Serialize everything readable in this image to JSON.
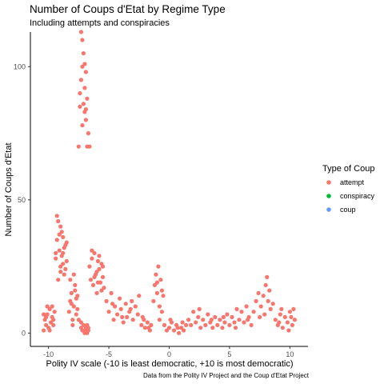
{
  "chart_data": {
    "type": "scatter",
    "title": "Number of Coups d'Etat by Regime Type",
    "subtitle": "Including attempts and conspiracies",
    "xlabel": "Polity IV scale (-10 is least democratic, +10 is most democratic)",
    "ylabel": "Number of Coups d'Etat",
    "caption": "Data from the Polity IV Project and the Coup d'Etat Project",
    "xlim": [
      -11.5,
      11.5
    ],
    "ylim": [
      -5,
      113
    ],
    "x_ticks": [
      -10,
      -5,
      0,
      5,
      10
    ],
    "y_ticks": [
      0,
      50,
      100
    ],
    "grid": false,
    "legend": {
      "title": "Type of Coup",
      "position": "right",
      "entries": [
        {
          "label": "attempt",
          "color": "#F8766D"
        },
        {
          "label": "conspiracy",
          "color": "#00BA38"
        },
        {
          "label": "coup",
          "color": "#619CFF"
        }
      ]
    },
    "series": [
      {
        "name": "attempt",
        "color": "#F8766D",
        "points": [
          [
            -10.3,
            5
          ],
          [
            -10.2,
            3
          ],
          [
            -10.1,
            7
          ],
          [
            -10.0,
            2
          ],
          [
            -9.9,
            9
          ],
          [
            -9.8,
            4
          ],
          [
            -9.7,
            6
          ],
          [
            -10.4,
            1
          ],
          [
            -10.1,
            10
          ],
          [
            -9.6,
            3
          ],
          [
            -9.5,
            8
          ],
          [
            -10.2,
            6
          ],
          [
            -9.9,
            1
          ],
          [
            -9.7,
            10
          ],
          [
            -10.4,
            7
          ],
          [
            -9.6,
            5
          ],
          [
            -9.4,
            28
          ],
          [
            -9.3,
            35
          ],
          [
            -9.2,
            42
          ],
          [
            -9.1,
            31
          ],
          [
            -9.0,
            25
          ],
          [
            -8.9,
            38
          ],
          [
            -8.8,
            30
          ],
          [
            -8.7,
            22
          ],
          [
            -8.6,
            33
          ],
          [
            -8.5,
            27
          ],
          [
            -9.3,
            44
          ],
          [
            -9.0,
            40
          ],
          [
            -8.8,
            36
          ],
          [
            -9.2,
            20
          ],
          [
            -8.6,
            24
          ],
          [
            -8.9,
            29
          ],
          [
            -9.1,
            37
          ],
          [
            -8.7,
            32
          ],
          [
            -9.4,
            30
          ],
          [
            -8.5,
            34
          ],
          [
            -9.0,
            23
          ],
          [
            -8.8,
            26
          ],
          [
            -8.3,
            8
          ],
          [
            -8.2,
            12
          ],
          [
            -8.1,
            15
          ],
          [
            -8.0,
            5
          ],
          [
            -7.9,
            10
          ],
          [
            -7.8,
            18
          ],
          [
            -7.7,
            7
          ],
          [
            -7.6,
            14
          ],
          [
            -8.2,
            20
          ],
          [
            -8.0,
            3
          ],
          [
            -7.8,
            16
          ],
          [
            -7.6,
            9
          ],
          [
            -7.9,
            22
          ],
          [
            -8.1,
            11
          ],
          [
            -7.7,
            13
          ],
          [
            -7.5,
            5
          ],
          [
            -7.3,
            2
          ],
          [
            -7.2,
            1
          ],
          [
            -7.1,
            3
          ],
          [
            -7.0,
            1
          ],
          [
            -6.9,
            2
          ],
          [
            -6.8,
            0
          ],
          [
            -6.7,
            1
          ],
          [
            -7.3,
            4
          ],
          [
            -6.8,
            3
          ],
          [
            -7.0,
            0
          ],
          [
            -6.7,
            2
          ],
          [
            -7.5,
            70
          ],
          [
            -7.4,
            85
          ],
          [
            -7.3,
            95
          ],
          [
            -7.2,
            110
          ],
          [
            -7.1,
            105
          ],
          [
            -7.0,
            92
          ],
          [
            -6.9,
            80
          ],
          [
            -6.8,
            88
          ],
          [
            -6.7,
            75
          ],
          [
            -7.2,
            100
          ],
          [
            -7.1,
            86
          ],
          [
            -7.3,
            113
          ],
          [
            -6.9,
            98
          ],
          [
            -7.4,
            90
          ],
          [
            -7.0,
            83
          ],
          [
            -6.8,
            70
          ],
          [
            -6.6,
            70
          ],
          [
            -7.2,
            78
          ],
          [
            -7.0,
            101
          ],
          [
            -6.9,
            84
          ],
          [
            -6.6,
            25
          ],
          [
            -6.5,
            20
          ],
          [
            -6.4,
            28
          ],
          [
            -6.3,
            18
          ],
          [
            -6.2,
            30
          ],
          [
            -6.1,
            22
          ],
          [
            -6.0,
            15
          ],
          [
            -5.9,
            27
          ],
          [
            -5.8,
            24
          ],
          [
            -5.7,
            19
          ],
          [
            -5.6,
            26
          ],
          [
            -5.5,
            21
          ],
          [
            -5.4,
            17
          ],
          [
            -6.4,
            31
          ],
          [
            -6.0,
            23
          ],
          [
            -5.8,
            29
          ],
          [
            -5.6,
            16
          ],
          [
            -5.5,
            25
          ],
          [
            -6.2,
            21
          ],
          [
            -5.9,
            19
          ],
          [
            -5.2,
            12
          ],
          [
            -5.0,
            8
          ],
          [
            -4.8,
            15
          ],
          [
            -4.6,
            5
          ],
          [
            -4.5,
            10
          ],
          [
            -4.3,
            7
          ],
          [
            -4.1,
            13
          ],
          [
            -4.0,
            9
          ],
          [
            -3.8,
            4
          ],
          [
            -3.6,
            11
          ],
          [
            -3.5,
            6
          ],
          [
            -3.3,
            8
          ],
          [
            -3.1,
            12
          ],
          [
            -3.0,
            5
          ],
          [
            -2.8,
            10
          ],
          [
            -2.6,
            7
          ],
          [
            -2.5,
            14
          ],
          [
            -4.7,
            11
          ],
          [
            -3.9,
            6
          ],
          [
            -3.2,
            9
          ],
          [
            -2.3,
            3
          ],
          [
            -2.1,
            5
          ],
          [
            -2.0,
            2
          ],
          [
            -1.8,
            4
          ],
          [
            -1.6,
            1
          ],
          [
            -1.5,
            3
          ],
          [
            -2.2,
            6
          ],
          [
            -1.7,
            2
          ],
          [
            -1.3,
            12
          ],
          [
            -1.2,
            18
          ],
          [
            -1.1,
            22
          ],
          [
            -1.0,
            15
          ],
          [
            -0.9,
            25
          ],
          [
            -0.8,
            10
          ],
          [
            -0.7,
            20
          ],
          [
            -0.6,
            8
          ],
          [
            -0.5,
            14
          ],
          [
            -1.0,
            19
          ],
          [
            -0.8,
            5
          ],
          [
            -0.6,
            16
          ],
          [
            -0.4,
            3
          ],
          [
            -0.2,
            1
          ],
          [
            0.0,
            2
          ],
          [
            0.2,
            4
          ],
          [
            0.4,
            1
          ],
          [
            0.6,
            3
          ],
          [
            0.8,
            0
          ],
          [
            1.0,
            2
          ],
          [
            1.2,
            1
          ],
          [
            1.4,
            3
          ],
          [
            0.1,
            5
          ],
          [
            0.7,
            2
          ],
          [
            1.1,
            4
          ],
          [
            1.6,
            5
          ],
          [
            1.8,
            3
          ],
          [
            2.0,
            8
          ],
          [
            2.2,
            4
          ],
          [
            2.4,
            6
          ],
          [
            2.6,
            2
          ],
          [
            2.8,
            5
          ],
          [
            3.0,
            3
          ],
          [
            3.2,
            7
          ],
          [
            3.4,
            4
          ],
          [
            3.6,
            2
          ],
          [
            3.8,
            6
          ],
          [
            4.0,
            3
          ],
          [
            4.2,
            5
          ],
          [
            4.4,
            2
          ],
          [
            4.6,
            4
          ],
          [
            4.8,
            7
          ],
          [
            5.0,
            3
          ],
          [
            5.2,
            6
          ],
          [
            5.4,
            4
          ],
          [
            5.6,
            9
          ],
          [
            5.8,
            5
          ],
          [
            6.0,
            8
          ],
          [
            6.2,
            4
          ],
          [
            6.4,
            10
          ],
          [
            6.6,
            6
          ],
          [
            6.8,
            3
          ],
          [
            2.5,
            9
          ],
          [
            3.5,
            5
          ],
          [
            4.5,
            6
          ],
          [
            5.5,
            2
          ],
          [
            6.5,
            5
          ],
          [
            7.0,
            8
          ],
          [
            7.2,
            12
          ],
          [
            7.4,
            15
          ],
          [
            7.6,
            10
          ],
          [
            7.8,
            14
          ],
          [
            8.0,
            18
          ],
          [
            8.2,
            12
          ],
          [
            8.4,
            9
          ],
          [
            8.6,
            11
          ],
          [
            7.5,
            6
          ],
          [
            8.1,
            21
          ],
          [
            7.9,
            7
          ],
          [
            8.3,
            16
          ],
          [
            8.8,
            5
          ],
          [
            9.0,
            3
          ],
          [
            9.2,
            7
          ],
          [
            9.4,
            2
          ],
          [
            9.6,
            6
          ],
          [
            9.8,
            4
          ],
          [
            10.0,
            8
          ],
          [
            10.2,
            3
          ],
          [
            10.4,
            5
          ],
          [
            9.3,
            9
          ],
          [
            9.9,
            1
          ],
          [
            10.1,
            6
          ],
          [
            10.3,
            9
          ],
          [
            9.1,
            4
          ]
        ]
      },
      {
        "name": "conspiracy",
        "color": "#00BA38",
        "points": []
      },
      {
        "name": "coup",
        "color": "#619CFF",
        "points": []
      }
    ]
  }
}
